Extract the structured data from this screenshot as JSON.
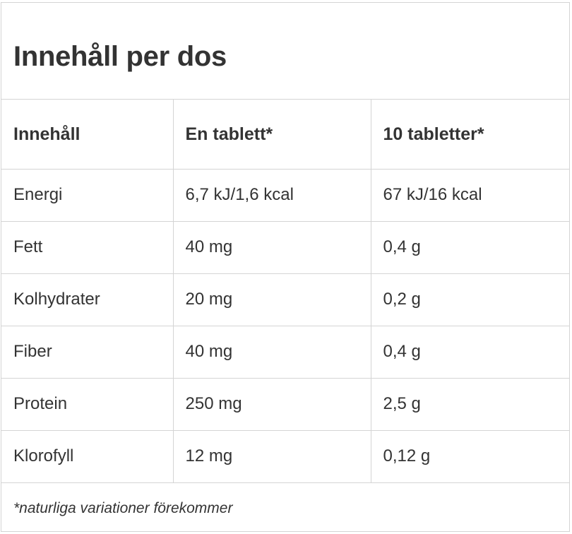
{
  "title": "Innehåll per dos",
  "table": {
    "headers": [
      "Innehåll",
      "En tablett*",
      "10 tabletter*"
    ],
    "rows": [
      [
        "Energi",
        "6,7 kJ/1,6 kcal",
        "67 kJ/16 kcal"
      ],
      [
        "Fett",
        "40 mg",
        "0,4 g"
      ],
      [
        "Kolhydrater",
        "20 mg",
        "0,2 g"
      ],
      [
        "Fiber",
        "40 mg",
        "0,4 g"
      ],
      [
        "Protein",
        "250 mg",
        "2,5 g"
      ],
      [
        "Klorofyll",
        "12 mg",
        "0,12 g"
      ]
    ]
  },
  "footnote": "*naturliga variationer förekommer",
  "colors": {
    "text": "#333333",
    "border": "#d4d4d4",
    "background": "#ffffff"
  }
}
